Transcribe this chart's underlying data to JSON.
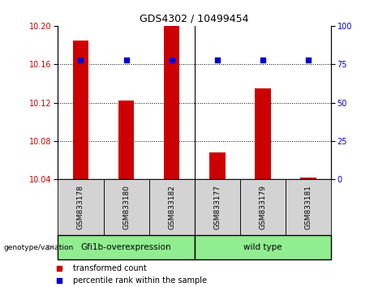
{
  "title": "GDS4302 / 10499454",
  "samples": [
    "GSM833178",
    "GSM833180",
    "GSM833182",
    "GSM833177",
    "GSM833179",
    "GSM833181"
  ],
  "bar_values": [
    10.185,
    10.122,
    10.2,
    10.068,
    10.135,
    10.042
  ],
  "percentile_values": [
    78,
    78,
    78,
    78,
    78,
    78
  ],
  "ylim_left": [
    10.04,
    10.2
  ],
  "ylim_right": [
    0,
    100
  ],
  "yticks_left": [
    10.04,
    10.08,
    10.12,
    10.16,
    10.2
  ],
  "yticks_right": [
    0,
    25,
    50,
    75,
    100
  ],
  "bar_color": "#cc0000",
  "dot_color": "#0000cc",
  "bar_bottom": 10.04,
  "groups": [
    {
      "label": "Gfi1b-overexpression",
      "n": 3,
      "color": "#90ee90"
    },
    {
      "label": "wild type",
      "n": 3,
      "color": "#90ee90"
    }
  ],
  "group_label_prefix": "genotype/variation",
  "legend_items": [
    {
      "color": "#cc0000",
      "label": "transformed count"
    },
    {
      "color": "#0000cc",
      "label": "percentile rank within the sample"
    }
  ],
  "label_color_left": "#cc0000",
  "label_color_right": "#0000cc",
  "tick_label_bg": "#d3d3d3",
  "separator_after": 2
}
